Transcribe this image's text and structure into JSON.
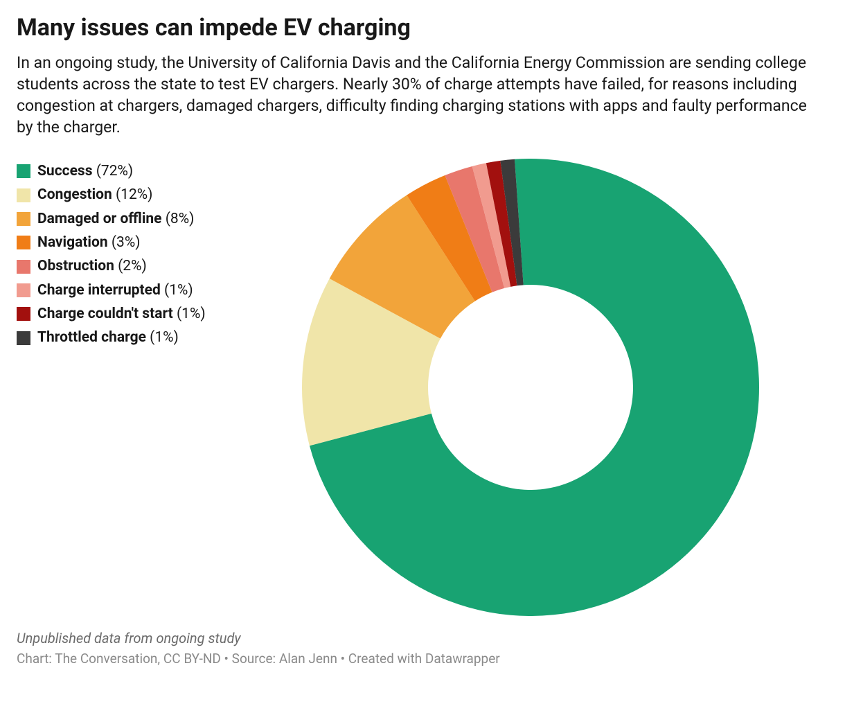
{
  "title": "Many issues can impede EV charging",
  "description": "In an ongoing study, the University of California Davis and the California Energy Commission are sending college students across the state to test EV chargers. Nearly 30% of charge attempts have failed, for reasons including congestion at chargers, damaged chargers, difficulty finding charging stations with apps and faulty performance by the charger.",
  "chart": {
    "type": "donut",
    "start_angle_deg": -4,
    "direction": "clockwise",
    "outer_radius": 330,
    "inner_radius": 148,
    "background_color": "#ffffff",
    "slices": [
      {
        "label": "Success",
        "value": 72,
        "color": "#18a372"
      },
      {
        "label": "Congestion",
        "value": 12,
        "color": "#f0e5a9"
      },
      {
        "label": "Damaged or offline",
        "value": 8,
        "color": "#f2a43a"
      },
      {
        "label": "Navigation",
        "value": 3,
        "color": "#f07d16"
      },
      {
        "label": "Obstruction",
        "value": 2,
        "color": "#e8776c"
      },
      {
        "label": "Charge interrupted",
        "value": 1,
        "color": "#f19b8f"
      },
      {
        "label": "Charge couldn't start",
        "value": 1,
        "color": "#a2100e"
      },
      {
        "label": "Throttled charge",
        "value": 1,
        "color": "#3b3b3b"
      }
    ]
  },
  "footer": {
    "note": "Unpublished data from ongoing study",
    "credit": "Chart: The Conversation, CC BY-ND • Source: Alan Jenn • Created with Datawrapper"
  },
  "typography": {
    "title_fontsize": 34,
    "description_fontsize": 23,
    "legend_fontsize": 21,
    "footnote_fontsize": 20,
    "credit_fontsize": 19,
    "title_weight": 700,
    "legend_label_weight": 700
  },
  "colors": {
    "text": "#181818",
    "footnote": "#6b6b6b",
    "credit": "#8a8a8a",
    "background": "#ffffff"
  }
}
